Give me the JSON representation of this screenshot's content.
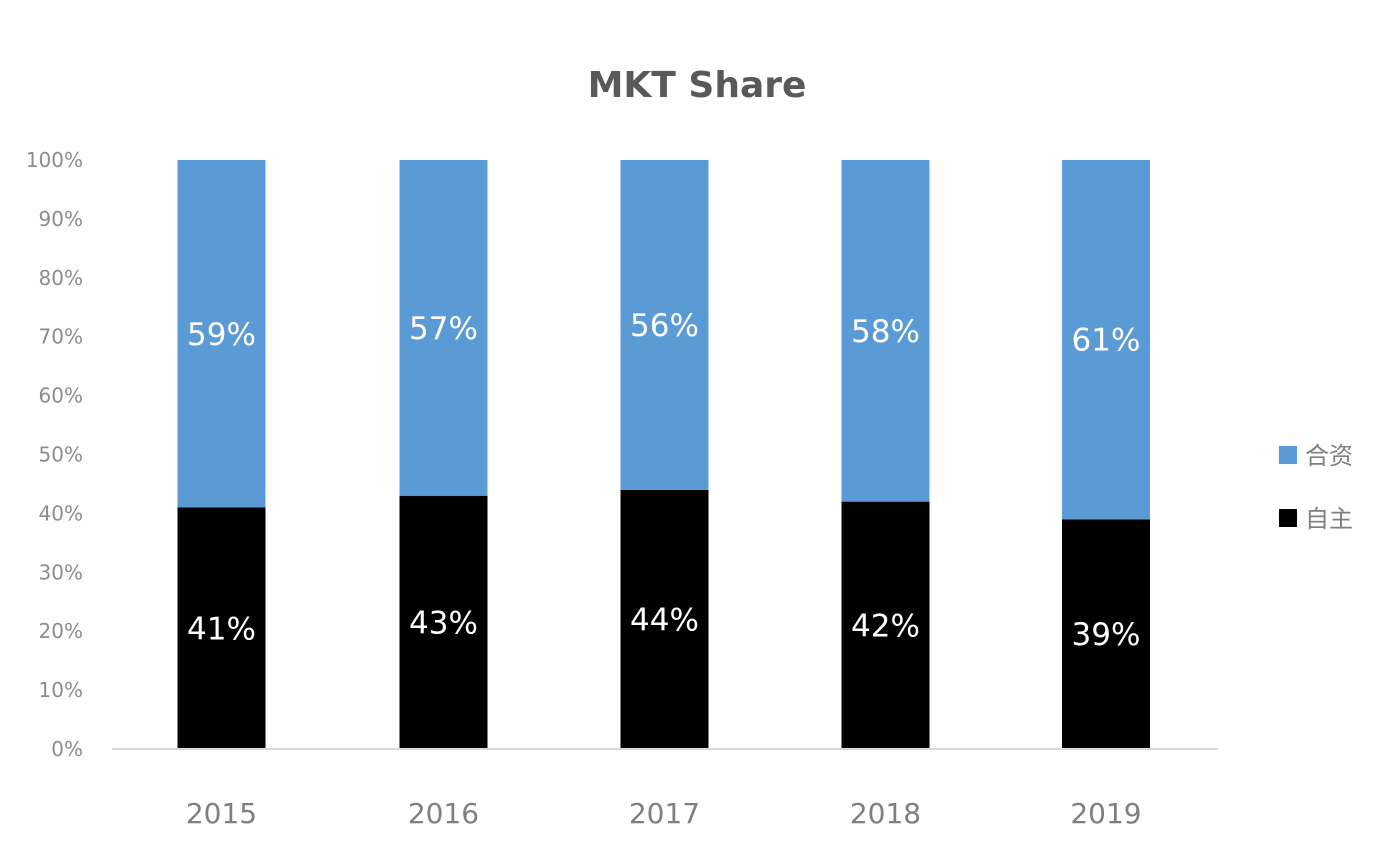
{
  "chart_data": {
    "type": "bar",
    "stacked": true,
    "title": "MKT Share",
    "xlabel": "",
    "ylabel": "",
    "categories": [
      "2015",
      "2016",
      "2017",
      "2018",
      "2019"
    ],
    "series": [
      {
        "name": "自主",
        "values": [
          41,
          43,
          44,
          42,
          39
        ],
        "labels": [
          "41%",
          "43%",
          "44%",
          "42%",
          "39%"
        ],
        "color": "#000000"
      },
      {
        "name": "合资",
        "values": [
          59,
          57,
          56,
          58,
          61
        ],
        "labels": [
          "59%",
          "57%",
          "56%",
          "58%",
          "61%"
        ],
        "color": "#5b9bd5"
      }
    ],
    "ylim": [
      0,
      100
    ],
    "yticks": [
      "0%",
      "10%",
      "20%",
      "30%",
      "40%",
      "50%",
      "60%",
      "70%",
      "80%",
      "90%",
      "100%"
    ],
    "grid": false,
    "legend_position": "right",
    "legend_order": [
      "合资",
      "自主"
    ],
    "axis_color": "#d9d9d9"
  }
}
